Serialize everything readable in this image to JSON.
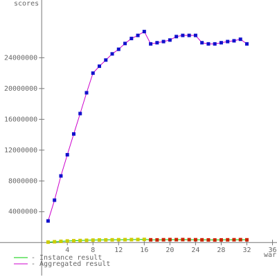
{
  "chart_data": {
    "type": "line",
    "y_label": "scores",
    "x_label": "war",
    "x": [
      1,
      2,
      3,
      4,
      5,
      6,
      7,
      8,
      9,
      10,
      11,
      12,
      13,
      14,
      15,
      16,
      17,
      18,
      19,
      20,
      21,
      22,
      23,
      24,
      25,
      26,
      27,
      28,
      29,
      30,
      31,
      32
    ],
    "series": [
      {
        "name": "- Instance result",
        "color": "#00cc00",
        "marker_colors": [
          "#cccc00",
          "#cccc00",
          "#cccc00",
          "#cccc00",
          "#cccc00",
          "#cccc00",
          "#cccc00",
          "#cccc00",
          "#cccc00",
          "#cccc00",
          "#cccc00",
          "#cccc00",
          "#cccc00",
          "#cccc00",
          "#cccc00",
          "#cccc00",
          "#cc2200",
          "#cc2200",
          "#cc2200",
          "#cc2200",
          "#cc2200",
          "#cc2200",
          "#cc2200",
          "#cc2200",
          "#cc2200",
          "#cc2200",
          "#cc2200",
          "#cc2200",
          "#cc2200",
          "#cc2200",
          "#cc2200",
          "#cc2200"
        ],
        "values": [
          50000,
          100000,
          150000,
          200000,
          230000,
          260000,
          290000,
          310000,
          330000,
          340000,
          350000,
          360000,
          370000,
          380000,
          390000,
          400000,
          350000,
          340000,
          360000,
          380000,
          370000,
          380000,
          370000,
          360000,
          350000,
          340000,
          330000,
          340000,
          350000,
          360000,
          370000,
          350000
        ]
      },
      {
        "name": "- Aggregated result",
        "color": "#cc00cc",
        "marker_color": "#1111cc",
        "values": [
          2800000,
          5500000,
          8650000,
          11400000,
          14100000,
          16750000,
          19450000,
          22000000,
          22900000,
          23700000,
          24500000,
          25100000,
          25850000,
          26500000,
          26900000,
          27400000,
          25800000,
          25950000,
          26100000,
          26300000,
          26750000,
          26900000,
          26900000,
          26900000,
          25950000,
          25800000,
          25800000,
          25950000,
          26100000,
          26200000,
          26400000,
          25800000
        ]
      }
    ],
    "xlim": [
      -6.5,
      36.7
    ],
    "ylim": [
      -4300000,
      31500000
    ],
    "xticks": [
      4,
      8,
      12,
      16,
      20,
      24,
      28,
      32,
      36
    ],
    "yticks": [
      4000000,
      8000000,
      12000000,
      16000000,
      20000000,
      24000000
    ]
  }
}
